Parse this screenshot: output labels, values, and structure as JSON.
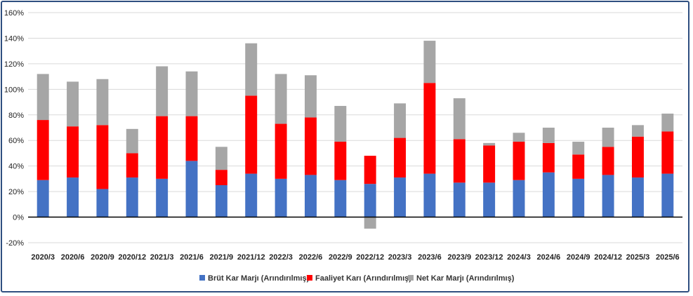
{
  "chart_data": {
    "type": "bar",
    "stacked": true,
    "categories": [
      "2020/3",
      "2020/6",
      "2020/9",
      "2020/12",
      "2021/3",
      "2021/6",
      "2021/9",
      "2021/12",
      "2022/3",
      "2022/6",
      "2022/9",
      "2022/12",
      "2023/3",
      "2023/6",
      "2023/9",
      "2023/12",
      "2024/3",
      "2024/6",
      "2024/9",
      "2024/12",
      "2025/3",
      "2025/6"
    ],
    "series": [
      {
        "name": "Brüt Kar Marjı (Arındırılmış)",
        "color": "#4472c4",
        "values": [
          29,
          31,
          22,
          31,
          30,
          44,
          25,
          34,
          30,
          33,
          29,
          26,
          31,
          34,
          27,
          27,
          29,
          35,
          30,
          33,
          31,
          34
        ]
      },
      {
        "name": "Faaliyet Karı (Arındırılmış)",
        "color": "#ff0000",
        "values": [
          47,
          40,
          50,
          19,
          49,
          35,
          12,
          61,
          43,
          45,
          30,
          22,
          31,
          71,
          34,
          29,
          30,
          23,
          19,
          22,
          32,
          33
        ]
      },
      {
        "name": "Net Kar Marjı (Arındırılmış)",
        "color": "#a6a6a6",
        "values": [
          36,
          35,
          36,
          19,
          39,
          35,
          18,
          41,
          39,
          33,
          28,
          -9,
          27,
          33,
          32,
          2,
          7,
          12,
          10,
          15,
          9,
          14
        ]
      }
    ],
    "y_ticks": [
      "-20%",
      "0%",
      "20%",
      "40%",
      "60%",
      "80%",
      "100%",
      "120%",
      "140%",
      "160%"
    ],
    "ylim": [
      -20,
      160
    ],
    "ytick_step": 20,
    "grid": true,
    "legend_position": "bottom"
  }
}
